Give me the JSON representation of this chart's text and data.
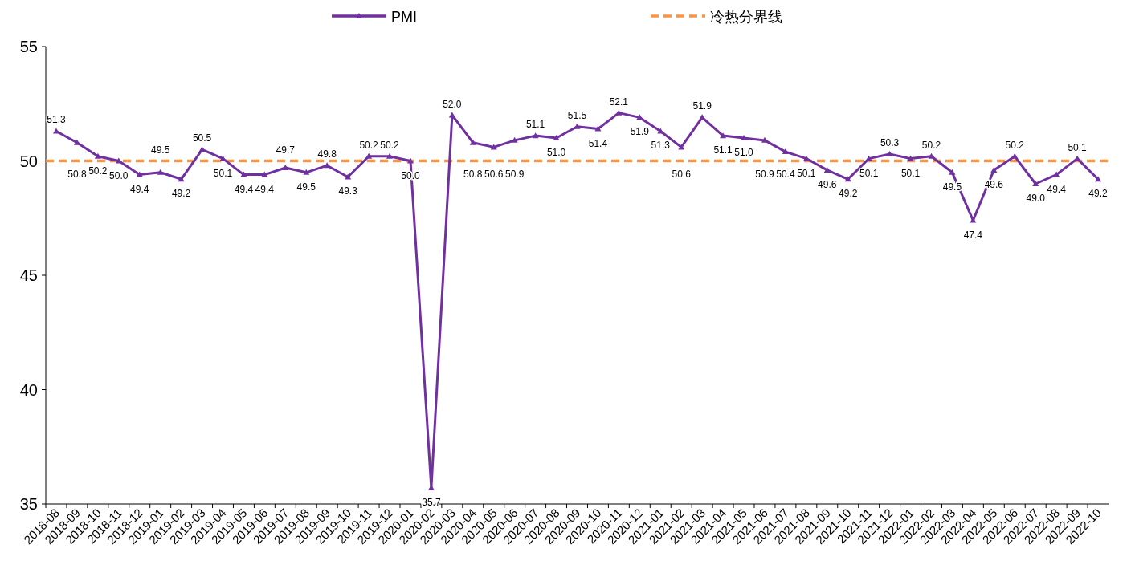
{
  "chart_data": {
    "type": "line",
    "categories": [
      "2018-08",
      "2018-09",
      "2018-10",
      "2018-11",
      "2018-12",
      "2019-01",
      "2019-02",
      "2019-03",
      "2019-04",
      "2019-05",
      "2019-06",
      "2019-07",
      "2019-08",
      "2019-09",
      "2019-10",
      "2019-11",
      "2019-12",
      "2020-01",
      "2020-02",
      "2020-03",
      "2020-04",
      "2020-05",
      "2020-06",
      "2020-07",
      "2020-08",
      "2020-09",
      "2020-10",
      "2020-11",
      "2020-12",
      "2021-01",
      "2021-02",
      "2021-03",
      "2021-04",
      "2021-05",
      "2021-06",
      "2021-07",
      "2021-08",
      "2021-09",
      "2021-10",
      "2021-11",
      "2021-12",
      "2022-01",
      "2022-02",
      "2022-03",
      "2022-04",
      "2022-05",
      "2022-06",
      "2022-07",
      "2022-08",
      "2022-09",
      "2022-10"
    ],
    "series": [
      {
        "name": "PMI",
        "color": "#7030a0",
        "values": [
          51.3,
          50.8,
          50.2,
          50.0,
          49.4,
          49.5,
          49.2,
          50.5,
          50.1,
          49.4,
          49.4,
          49.7,
          49.5,
          49.8,
          49.3,
          50.2,
          50.2,
          50.0,
          35.7,
          52.0,
          50.8,
          50.6,
          50.9,
          51.1,
          51.0,
          51.5,
          51.4,
          52.1,
          51.9,
          51.3,
          50.6,
          51.9,
          51.1,
          51.0,
          50.9,
          50.4,
          50.1,
          49.6,
          49.2,
          50.1,
          50.3,
          50.1,
          50.2,
          49.5,
          47.4,
          49.6,
          50.2,
          49.0,
          49.4,
          50.1,
          49.2
        ],
        "value_labels": [
          "51.3",
          "50.8",
          "50.2",
          "50.0",
          "49.4",
          "49.5",
          "49.2",
          "50.5",
          "50.1",
          "49.4",
          "49.4",
          "49.7",
          "49.5",
          "49.8",
          "49.3",
          "50.2",
          "50.2",
          "50.0",
          "35.7",
          "52.0",
          "50.8",
          "50.6",
          "50.9",
          "51.1",
          "51.0",
          "51.5",
          "51.4",
          "52.1",
          "51.9",
          "51.3",
          "50.6",
          "51.9",
          "51.1",
          "51.0",
          "50.9",
          "50.4",
          "50.1",
          "49.6",
          "49.2",
          "50.1",
          "50.3",
          "50.1",
          "50.2",
          "49.5",
          "47.4",
          "49.6",
          "50.2",
          "49.0",
          "49.4",
          "50.1",
          "49.2"
        ]
      }
    ],
    "ylim": [
      35,
      55
    ],
    "yticks": [
      35,
      40,
      45,
      50,
      55
    ],
    "marker": "triangle",
    "line_style": "solid",
    "legend": "top",
    "grid": false,
    "ref_lines": [
      {
        "axis": "y",
        "value": 50,
        "label": "冷热分界线",
        "color": "#f79646",
        "line_style": "dashed"
      }
    ]
  }
}
